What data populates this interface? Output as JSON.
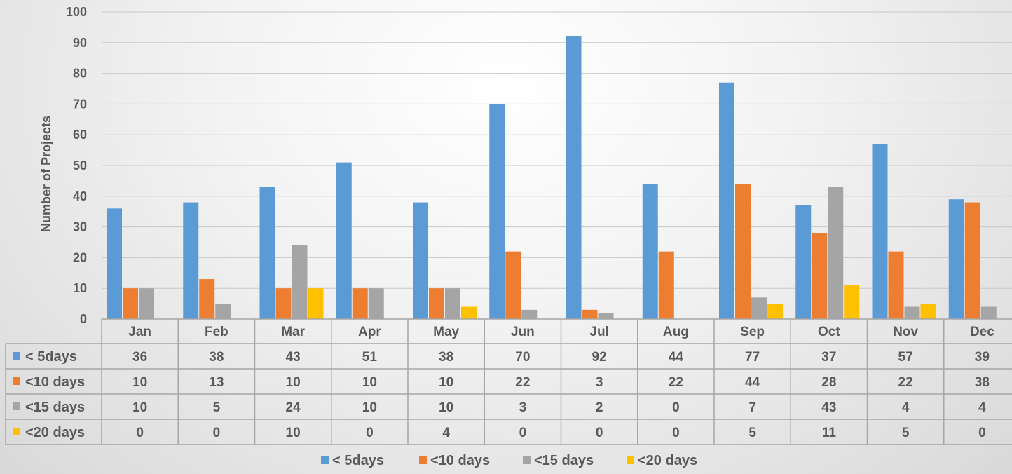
{
  "chart_data": {
    "type": "bar",
    "ylabel": "Number of Projects",
    "ylim": [
      0,
      100
    ],
    "yticks": [
      0,
      10,
      20,
      30,
      40,
      50,
      60,
      70,
      80,
      90,
      100
    ],
    "grid": true,
    "legend_position": "bottom",
    "data_table": true,
    "categories": [
      "Jan",
      "Feb",
      "Mar",
      "Apr",
      "May",
      "Jun",
      "Jul",
      "Aug",
      "Sep",
      "Oct",
      "Nov",
      "Dec"
    ],
    "series": [
      {
        "name": "< 5days",
        "color": "#5b9bd5",
        "values": [
          36,
          38,
          43,
          51,
          38,
          70,
          92,
          44,
          77,
          37,
          57,
          39
        ]
      },
      {
        "name": "<10 days",
        "color": "#ed7d31",
        "values": [
          10,
          13,
          10,
          10,
          10,
          22,
          3,
          22,
          44,
          28,
          22,
          38
        ]
      },
      {
        "name": "<15 days",
        "color": "#a5a5a5",
        "values": [
          10,
          5,
          24,
          10,
          10,
          3,
          2,
          0,
          7,
          43,
          4,
          4
        ]
      },
      {
        "name": "<20 days",
        "color": "#ffc000",
        "values": [
          0,
          0,
          10,
          0,
          4,
          0,
          0,
          0,
          5,
          11,
          5,
          0
        ]
      }
    ]
  }
}
